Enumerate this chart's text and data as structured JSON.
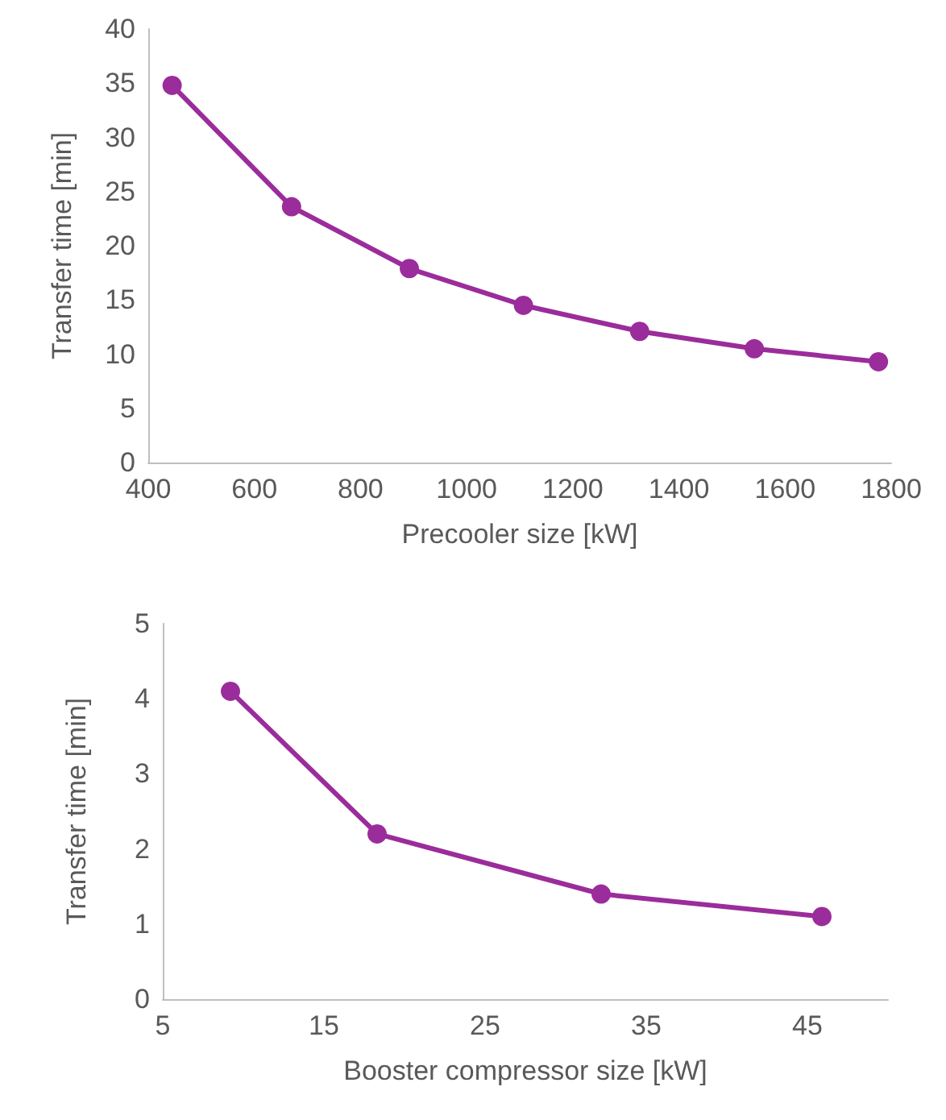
{
  "chart_data": [
    {
      "type": "line",
      "xlabel": "Precooler size [kW]",
      "ylabel": "Transfer time [min]",
      "x": [
        445,
        670,
        892,
        1107,
        1326,
        1542,
        1776
      ],
      "series": [
        {
          "color": "#9b2c9b",
          "values": [
            34.8,
            23.6,
            17.9,
            14.5,
            12.1,
            10.5,
            9.3
          ]
        }
      ],
      "xlim": [
        400,
        1800
      ],
      "xticks": [
        400,
        600,
        800,
        1000,
        1200,
        1400,
        1600,
        1800
      ],
      "ylim": [
        0,
        40
      ],
      "yticks": [
        0,
        5,
        10,
        15,
        20,
        25,
        30,
        35,
        40
      ],
      "grid": false,
      "marker": "circle",
      "line_style": "solid"
    },
    {
      "type": "line",
      "xlabel": "Booster compressor size [kW]",
      "ylabel": "Transfer time [min]",
      "x": [
        9.2,
        18.3,
        32.2,
        45.9
      ],
      "series": [
        {
          "color": "#9b2c9b",
          "values": [
            4.1,
            2.2,
            1.4,
            1.1
          ]
        }
      ],
      "xlim": [
        5,
        50
      ],
      "xticks": [
        5,
        15,
        25,
        35,
        45
      ],
      "ylim": [
        0,
        5
      ],
      "yticks": [
        0,
        1,
        2,
        3,
        4,
        5
      ],
      "grid": false,
      "marker": "circle",
      "line_style": "solid"
    }
  ]
}
